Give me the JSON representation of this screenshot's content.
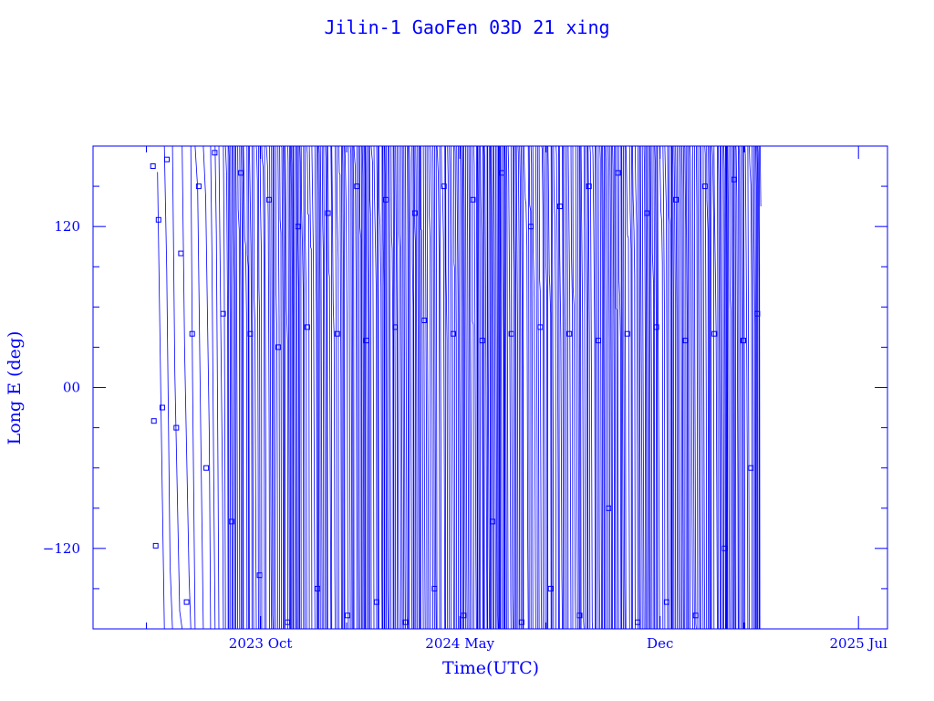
{
  "chart_data": {
    "type": "line",
    "title": "Jilin-1 GaoFen 03D 21 xing",
    "xlabel": "Time(UTC)",
    "ylabel": "Long E (deg)",
    "x_tick_labels": [
      "2023 Oct",
      "2024 May",
      "Dec",
      "2025 Jul"
    ],
    "y_tick_labels": [
      "−120",
      "00",
      "120"
    ],
    "y_ticks": [
      -120,
      0,
      120
    ],
    "ylim": [
      -180,
      180
    ],
    "xlim": [
      "2023-04-05",
      "2025-08-01"
    ],
    "x_tick_dates": [
      "2023-10-01",
      "2024-05-01",
      "2024-12-01",
      "2025-07-01"
    ],
    "grid": false,
    "color": "#0000ff",
    "marker": "square",
    "series": [
      {
        "x": [
          "2023-06-08",
          "2023-06-09",
          "2023-06-11",
          "2023-06-14",
          "2023-06-18",
          "2023-06-23",
          "2023-07-03",
          "2023-07-08",
          "2023-07-14",
          "2023-07-20",
          "2023-07-27",
          "2023-08-04",
          "2023-08-13",
          "2023-08-22",
          "2023-08-31",
          "2023-09-10",
          "2023-09-20",
          "2023-09-30",
          "2023-10-10",
          "2023-10-20",
          "2023-10-30",
          "2023-11-10",
          "2023-11-20",
          "2023-12-01",
          "2023-12-12",
          "2023-12-22",
          "2024-01-02",
          "2024-01-12",
          "2024-01-22",
          "2024-02-02",
          "2024-02-12",
          "2024-02-22",
          "2024-03-04",
          "2024-03-14",
          "2024-03-24",
          "2024-04-04",
          "2024-04-14",
          "2024-04-24",
          "2024-05-05",
          "2024-05-15",
          "2024-05-25",
          "2024-06-05",
          "2024-06-15",
          "2024-06-25",
          "2024-07-06",
          "2024-07-16",
          "2024-07-26",
          "2024-08-06",
          "2024-08-16",
          "2024-08-26",
          "2024-09-06",
          "2024-09-16",
          "2024-09-26",
          "2024-10-07",
          "2024-10-17",
          "2024-10-27",
          "2024-11-07",
          "2024-11-17",
          "2024-11-27",
          "2024-12-08",
          "2024-12-18",
          "2024-12-28",
          "2025-01-08",
          "2025-01-18",
          "2025-01-28",
          "2025-02-08",
          "2025-02-18",
          "2025-02-28",
          "2025-03-08",
          "2025-03-15"
        ],
        "y": [
          165,
          -25,
          -118,
          125,
          -15,
          170,
          -30,
          100,
          -160,
          40,
          150,
          -60,
          175,
          55,
          -100,
          160,
          40,
          -140,
          140,
          30,
          -175,
          120,
          45,
          -150,
          130,
          40,
          -170,
          150,
          35,
          -160,
          140,
          45,
          -175,
          130,
          50,
          -150,
          150,
          40,
          -170,
          140,
          35,
          -100,
          160,
          40,
          -175,
          120,
          45,
          -150,
          135,
          40,
          -170,
          150,
          35,
          -90,
          160,
          40,
          -175,
          130,
          45,
          -160,
          140,
          35,
          -170,
          150,
          40,
          -120,
          155,
          35,
          -60,
          55
        ]
      }
    ]
  }
}
